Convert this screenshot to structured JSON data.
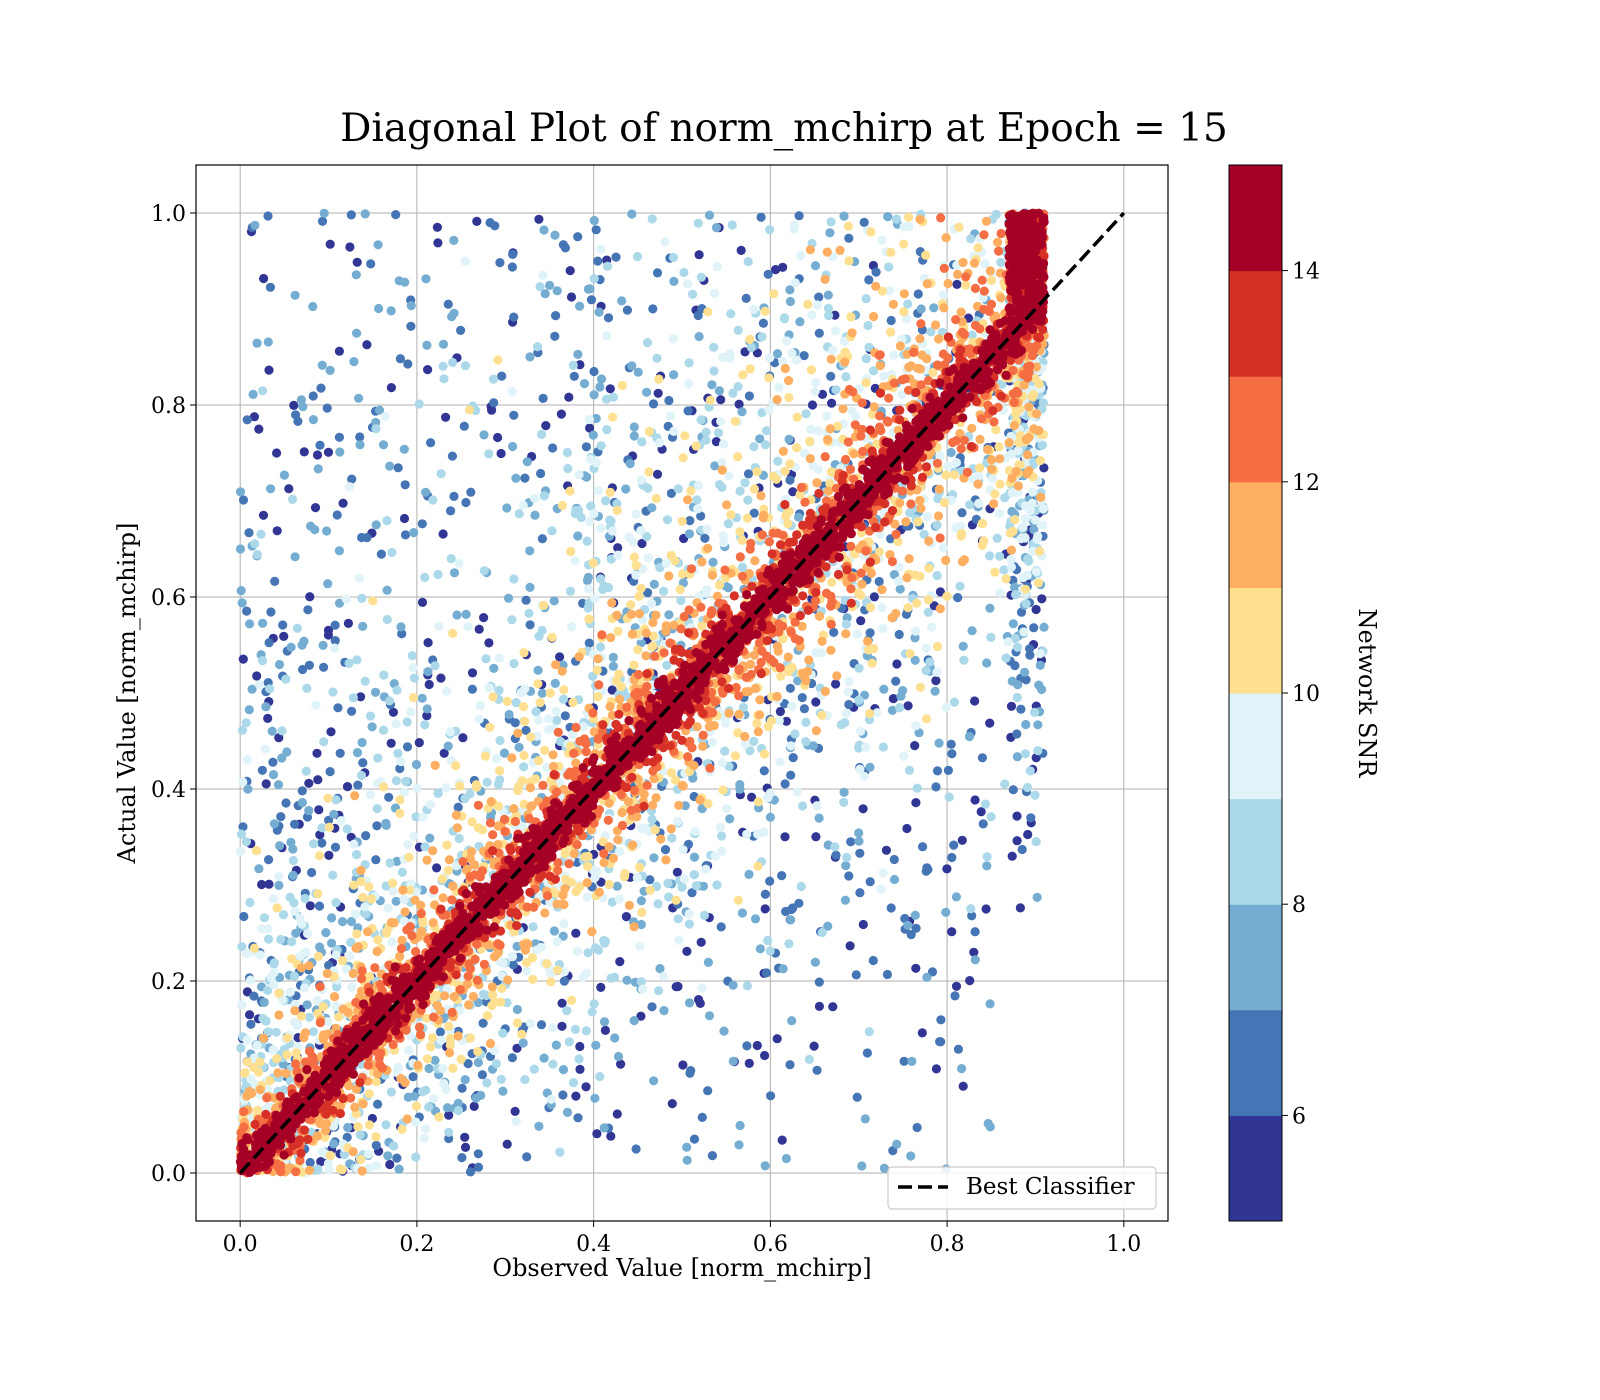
{
  "chart_data": {
    "type": "scatter",
    "title": "Diagonal Plot of norm_mchirp at Epoch = 15",
    "xlabel": "Observed Value [norm_mchirp]",
    "ylabel": "Actual Value [norm_mchirp]",
    "xlim": [
      -0.05,
      1.05
    ],
    "ylim": [
      -0.05,
      1.05
    ],
    "xticks": [
      "0.0",
      "0.2",
      "0.4",
      "0.6",
      "0.8",
      "1.0"
    ],
    "yticks": [
      "0.0",
      "0.2",
      "0.4",
      "0.6",
      "0.8",
      "1.0"
    ],
    "grid": true,
    "reference_line": {
      "name": "Best Classifier",
      "x": [
        0.0,
        1.0
      ],
      "y": [
        0.0,
        1.0
      ],
      "style": "dashed",
      "color": "#000000"
    },
    "legend": {
      "position": "lower-right",
      "entries": [
        "Best Classifier"
      ]
    },
    "colorbar": {
      "label": "Network SNR",
      "range": [
        5,
        15
      ],
      "ticks": [
        "6",
        "8",
        "10",
        "12",
        "14"
      ],
      "colormap": "RdYlBu_r",
      "bins": 10,
      "colors": [
        "#313695",
        "#4575b4",
        "#74add1",
        "#abd9e9",
        "#e0f3f8",
        "#fee090",
        "#fdae61",
        "#f46d43",
        "#d73027",
        "#a50026"
      ]
    },
    "point_color_dimension": "Network SNR",
    "summary": {
      "description": "Dense scatter of predicted vs actual norm_mchirp; high-SNR points (dark red) cluster tightly along the diagonal, low-SNR points (blue) scattered widely",
      "approx_point_count": 40000,
      "observed_range": [
        0.0,
        0.91
      ],
      "actual_range": [
        0.0,
        1.0
      ]
    }
  }
}
